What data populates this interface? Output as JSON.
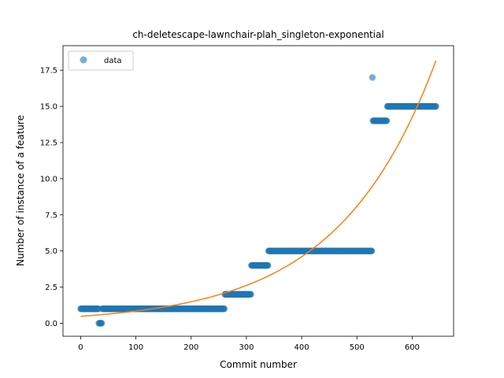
{
  "chart_data": {
    "type": "scatter",
    "title": "ch-deletescape-lawnchair-plah_singleton-exponential",
    "xlabel": "Commit number",
    "ylabel": "Number of instance of a feature",
    "xlim": [
      -32,
      675
    ],
    "ylim": [
      -0.9,
      19.2
    ],
    "x_ticks": [
      0,
      100,
      200,
      300,
      400,
      500,
      600
    ],
    "y_ticks": [
      0.0,
      2.5,
      5.0,
      7.5,
      10.0,
      12.5,
      15.0,
      17.5
    ],
    "x_tick_labels": [
      "0",
      "100",
      "200",
      "300",
      "400",
      "500",
      "600"
    ],
    "y_tick_labels": [
      "0.0",
      "2.5",
      "5.0",
      "7.5",
      "10.0",
      "12.5",
      "15.0",
      "17.5"
    ],
    "grid": false,
    "legend": {
      "position": "top-left",
      "entries": [
        "data"
      ]
    },
    "colors": {
      "data": "#1f77b4",
      "fit": "#ff7f0e"
    },
    "series": [
      {
        "name": "data",
        "kind": "scatter",
        "segments": [
          {
            "x_start": 0,
            "x_end": 32,
            "y": 1
          },
          {
            "x_start": 33,
            "x_end": 38,
            "y": 0
          },
          {
            "x_start": 39,
            "x_end": 260,
            "y": 1
          },
          {
            "x_start": 261,
            "x_end": 308,
            "y": 2
          },
          {
            "x_start": 309,
            "x_end": 339,
            "y": 4
          },
          {
            "x_start": 340,
            "x_end": 527,
            "y": 5
          },
          {
            "x_start": 528,
            "x_end": 528,
            "y": 17
          },
          {
            "x_start": 529,
            "x_end": 554,
            "y": 14
          },
          {
            "x_start": 555,
            "x_end": 643,
            "y": 15
          }
        ]
      },
      {
        "kind": "line",
        "function": "exponential",
        "a": 0.48,
        "b": 0.00565,
        "x_start": 0,
        "x_end": 643
      }
    ]
  }
}
